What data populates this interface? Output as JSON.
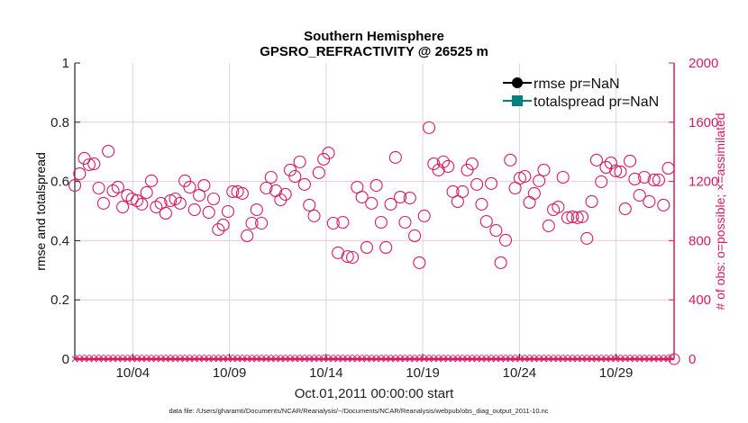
{
  "chart_data": {
    "type": "scatter",
    "title": [
      "Southern Hemisphere",
      "GPSRO_REFRACTIVITY @ 26525 m"
    ],
    "xlabel": "Oct.01,2011 00:00:00 start",
    "ylabel_left": "rmse and totalspread",
    "ylabel_right": "# of obs: o=possible; ×=assimilated",
    "footnote": "data file: /Users/gharamti/Documents/NCAR/Reanalysis/~/Documents/NCAR/Reanalysis/webpub/obs_diag_output_2011-10.nc",
    "xlim_day": [
      1,
      32
    ],
    "x_ticks": [
      {
        "day": 4,
        "label": "10/04"
      },
      {
        "day": 9,
        "label": "10/09"
      },
      {
        "day": 14,
        "label": "10/14"
      },
      {
        "day": 19,
        "label": "10/19"
      },
      {
        "day": 24,
        "label": "10/24"
      },
      {
        "day": 29,
        "label": "10/29"
      }
    ],
    "ylim_left": [
      0,
      1
    ],
    "yticks_left": [
      "0",
      "0.2",
      "0.4",
      "0.6",
      "0.8",
      "1"
    ],
    "ylim_right": [
      0,
      2000
    ],
    "yticks_right": [
      "0",
      "400",
      "800",
      "1200",
      "1600",
      "2000"
    ],
    "legend": {
      "placement": "top-right",
      "entries": [
        {
          "label": "rmse pr=NaN",
          "color": "#000000"
        },
        {
          "label": "totalspread pr=NaN",
          "color": "#008080"
        }
      ]
    },
    "colors": {
      "obs": "#d81b60",
      "grid": "#d9d9d9",
      "hgrid": "#f3c9d8"
    },
    "series": [
      {
        "name": "possible obs",
        "marker": "o",
        "axis": "right",
        "x_start_day": 1.0,
        "x_end_day": 31.7,
        "values": [
          1173,
          1252,
          1356,
          1313,
          1319,
          1155,
          1052,
          1404,
          1137,
          1161,
          1027,
          1106,
          1082,
          1070,
          1046,
          1125,
          1204,
          1027,
          1052,
          985,
          1070,
          1082,
          1052,
          1204,
          1161,
          1009,
          1106,
          1173,
          991,
          1082,
          875,
          906,
          997,
          1131,
          1131,
          1119,
          833,
          918,
          1009,
          918,
          1155,
          1228,
          1137,
          1076,
          1113,
          1277,
          1234,
          1332,
          1180,
          1040,
          967,
          1259,
          1350,
          1392,
          918,
          718,
          924,
          693,
          687,
          1161,
          1094,
          754,
          1052,
          1173,
          924,
          754,
          1046,
          1362,
          1094,
          924,
          1088,
          833,
          651,
          967,
          1563,
          1319,
          1277,
          1332,
          1301,
          1131,
          1064,
          1131,
          1277,
          1319,
          1180,
          1046,
          930,
          1186,
          869,
          651,
          803,
          1344,
          1155,
          1222,
          1234,
          1058,
          1119,
          1204,
          1277,
          900,
          1009,
          1027,
          1228,
          955,
          961,
          955,
          961,
          815,
          1064,
          1344,
          1198,
          1295,
          1325,
          1271,
          1265,
          1015,
          1338,
          1216,
          1106,
          1228,
          1064,
          1210,
          1210,
          1040,
          1289
        ]
      },
      {
        "name": "assimilated obs",
        "marker": "x",
        "axis": "right",
        "value_all": 0
      },
      {
        "name": "rmse",
        "axis": "left",
        "values": []
      },
      {
        "name": "totalspread",
        "axis": "left",
        "values": []
      }
    ]
  }
}
